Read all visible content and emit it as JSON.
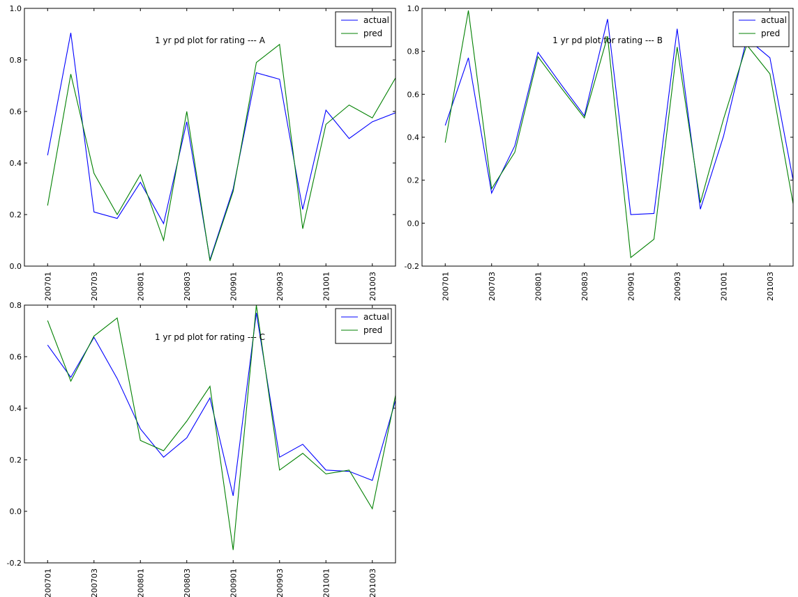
{
  "chart_data": [
    {
      "type": "line",
      "title": "1 yr pd plot for rating --- A",
      "categories": [
        "200701",
        null,
        "200703",
        null,
        "200801",
        null,
        "200803",
        null,
        "200901",
        null,
        "200903",
        null,
        "201001",
        null,
        "201003",
        null
      ],
      "series": [
        {
          "name": "actual",
          "color": "#0000ff",
          "values": [
            0.43,
            0.905,
            0.21,
            0.185,
            0.325,
            0.165,
            0.56,
            0.025,
            0.3,
            0.75,
            0.725,
            0.22,
            0.605,
            0.495,
            0.56,
            0.595
          ]
        },
        {
          "name": "pred",
          "color": "#008000",
          "values": [
            0.235,
            0.745,
            0.36,
            0.2,
            0.355,
            0.1,
            0.6,
            0.02,
            0.29,
            0.79,
            0.86,
            0.145,
            0.55,
            0.625,
            0.575,
            0.73
          ]
        }
      ],
      "ylim": [
        0,
        1
      ],
      "yticks": [
        {
          "value": 0,
          "label": "0.0"
        },
        0.2,
        0.4,
        0.6,
        0.8,
        {
          "value": 1,
          "label": "1.0"
        }
      ],
      "legend": "upper right"
    },
    {
      "type": "line",
      "title": "1 yr pd plot for rating --- B",
      "categories": [
        "200701",
        null,
        "200703",
        null,
        "200801",
        null,
        "200803",
        null,
        "200901",
        null,
        "200903",
        null,
        "201001",
        null,
        "201003",
        null
      ],
      "series": [
        {
          "name": "actual",
          "color": "#0000ff",
          "values": [
            0.455,
            0.77,
            0.14,
            0.36,
            0.795,
            0.645,
            0.5,
            0.95,
            0.04,
            0.045,
            0.905,
            0.065,
            0.405,
            0.86,
            0.77,
            0.2
          ]
        },
        {
          "name": "pred",
          "color": "#008000",
          "values": [
            0.375,
            0.99,
            0.16,
            0.33,
            0.775,
            0.63,
            0.49,
            0.87,
            -0.16,
            -0.075,
            0.82,
            0.095,
            0.485,
            0.83,
            0.695,
            0.09
          ]
        }
      ],
      "ylim": [
        -0.2,
        1
      ],
      "yticks": [
        -0.2,
        {
          "value": 0,
          "label": "0.0"
        },
        0.2,
        0.4,
        0.6,
        0.8,
        {
          "value": 1,
          "label": "1.0"
        }
      ],
      "legend": "upper right"
    },
    {
      "type": "line",
      "title": "1 yr pd plot for rating --- C",
      "categories": [
        "200701",
        null,
        "200703",
        null,
        "200801",
        null,
        "200803",
        null,
        "200901",
        null,
        "200903",
        null,
        "201001",
        null,
        "201003",
        null
      ],
      "series": [
        {
          "name": "actual",
          "color": "#0000ff",
          "values": [
            0.645,
            0.52,
            0.675,
            0.515,
            0.32,
            0.21,
            0.285,
            0.44,
            0.06,
            0.77,
            0.21,
            0.26,
            0.16,
            0.155,
            0.12,
            0.43
          ]
        },
        {
          "name": "pred",
          "color": "#008000",
          "values": [
            0.74,
            0.505,
            0.68,
            0.75,
            0.275,
            0.235,
            0.35,
            0.485,
            -0.15,
            0.8,
            0.16,
            0.225,
            0.145,
            0.16,
            0.01,
            0.45
          ]
        }
      ],
      "ylim": [
        -0.2,
        0.8
      ],
      "yticks": [
        -0.2,
        {
          "value": 0,
          "label": "0.0"
        },
        0.2,
        0.4,
        0.6,
        0.8
      ],
      "legend": "upper right"
    }
  ]
}
